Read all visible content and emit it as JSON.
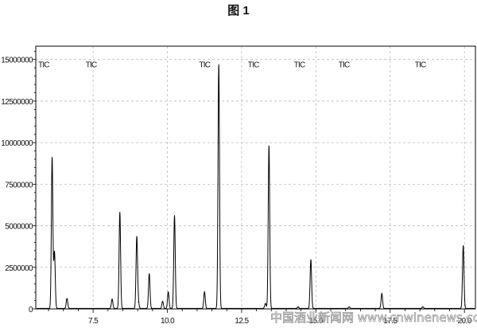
{
  "chart_data": {
    "type": "line",
    "title": "图 1",
    "xlabel": "",
    "ylabel": "",
    "xlim": [
      5.57,
      20.37
    ],
    "ylim": [
      0,
      15800000
    ],
    "grid": true,
    "x_ticks": [
      "7.5",
      "10.0",
      "12.5",
      "15.0",
      "17.5",
      "20.0"
    ],
    "y_ticks": [
      "0",
      "2500000",
      "5000000",
      "7500000",
      "10000000",
      "12500000",
      "15000000"
    ],
    "trace_labels": [
      {
        "text": "TIC",
        "x": 5.65
      },
      {
        "text": "TIC",
        "x": 7.25
      },
      {
        "text": "TIC",
        "x": 11.07
      },
      {
        "text": "TIC",
        "x": 12.71
      },
      {
        "text": "TIC",
        "x": 14.26
      },
      {
        "text": "TIC",
        "x": 15.76
      },
      {
        "text": "TIC",
        "x": 18.33
      }
    ],
    "series": [
      {
        "peaks": [
          {
            "x": 6.12,
            "y": 9100000
          },
          {
            "x": 6.2,
            "y": 3400000
          },
          {
            "x": 6.62,
            "y": 600000
          },
          {
            "x": 8.14,
            "y": 570000
          },
          {
            "x": 8.4,
            "y": 5800000
          },
          {
            "x": 8.97,
            "y": 4300000
          },
          {
            "x": 9.02,
            "y": 400000
          },
          {
            "x": 9.39,
            "y": 2100000
          },
          {
            "x": 9.84,
            "y": 430000
          },
          {
            "x": 10.03,
            "y": 1000000
          },
          {
            "x": 10.24,
            "y": 5600000
          },
          {
            "x": 11.25,
            "y": 1000000
          },
          {
            "x": 11.73,
            "y": 14700000
          },
          {
            "x": 13.3,
            "y": 300000
          },
          {
            "x": 13.42,
            "y": 9800000
          },
          {
            "x": 14.4,
            "y": 100000
          },
          {
            "x": 14.83,
            "y": 2950000
          },
          {
            "x": 16.12,
            "y": 100000
          },
          {
            "x": 17.22,
            "y": 900000
          },
          {
            "x": 18.6,
            "y": 100000
          },
          {
            "x": 19.96,
            "y": 3800000
          }
        ]
      }
    ],
    "line_color": "#000000",
    "grid_color": "#bdbdbd"
  },
  "watermark": "中国酒业新闻网  www.cnwinenews.com"
}
